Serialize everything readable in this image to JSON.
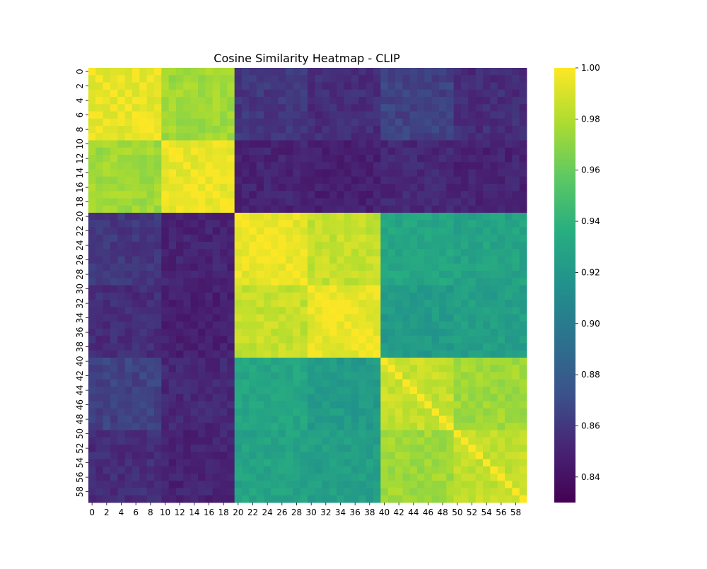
{
  "chart_data": {
    "type": "heatmap",
    "title": "Cosine Similarity Heatmap - CLIP",
    "n": 60,
    "colormap": "viridis",
    "vmin": 0.83,
    "vmax": 1.0,
    "x_tick_labels": [
      "0",
      "2",
      "4",
      "6",
      "8",
      "10",
      "12",
      "14",
      "16",
      "18",
      "20",
      "22",
      "24",
      "26",
      "28",
      "30",
      "32",
      "34",
      "36",
      "38",
      "40",
      "42",
      "44",
      "46",
      "48",
      "50",
      "52",
      "54",
      "56",
      "58"
    ],
    "y_tick_labels": [
      "0",
      "2",
      "4",
      "6",
      "8",
      "10",
      "12",
      "14",
      "16",
      "18",
      "20",
      "22",
      "24",
      "26",
      "28",
      "30",
      "32",
      "34",
      "36",
      "38",
      "40",
      "42",
      "44",
      "46",
      "48",
      "50",
      "52",
      "54",
      "56",
      "58"
    ],
    "colorbar_ticks": [
      "1.00",
      "0.98",
      "0.96",
      "0.94",
      "0.92",
      "0.90",
      "0.88",
      "0.86",
      "0.84"
    ],
    "groups": [
      {
        "label": "0-9",
        "start": 0,
        "end": 9
      },
      {
        "label": "10-19",
        "start": 10,
        "end": 19
      },
      {
        "label": "20-29",
        "start": 20,
        "end": 29
      },
      {
        "label": "30-39",
        "start": 30,
        "end": 39
      },
      {
        "label": "40-49",
        "start": 40,
        "end": 49
      },
      {
        "label": "50-59",
        "start": 50,
        "end": 59
      }
    ],
    "block_similarity": [
      [
        0.995,
        0.975,
        0.86,
        0.855,
        0.865,
        0.855
      ],
      [
        0.975,
        0.995,
        0.85,
        0.848,
        0.852,
        0.85
      ],
      [
        0.86,
        0.85,
        0.995,
        0.985,
        0.93,
        0.928
      ],
      [
        0.855,
        0.848,
        0.985,
        0.995,
        0.922,
        0.925
      ],
      [
        0.865,
        0.852,
        0.93,
        0.922,
        0.985,
        0.975
      ],
      [
        0.855,
        0.85,
        0.928,
        0.925,
        0.975,
        0.985
      ]
    ],
    "diagonal_value": 1.0,
    "grid": false,
    "legend": "colorbar-right"
  }
}
